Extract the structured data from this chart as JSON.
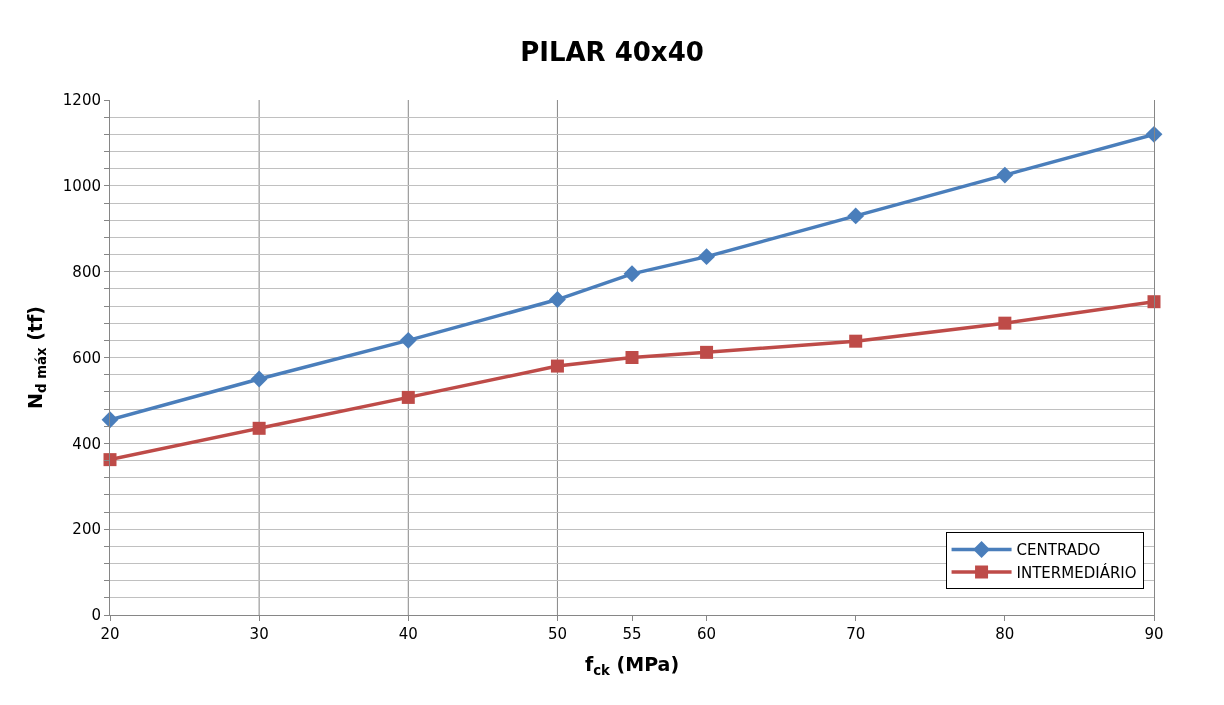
{
  "chart_data": {
    "type": "line",
    "title": "PILAR 40x40",
    "xlabel": "f$_{ck}$ (MPa)",
    "ylabel": "N$_{d máx}$ (tf)",
    "x": [
      20,
      30,
      40,
      50,
      55,
      60,
      70,
      80,
      90
    ],
    "series": [
      {
        "name": "CENTRADO",
        "color": "#4a7ebb",
        "marker": "diamond",
        "values": [
          455,
          550,
          640,
          735,
          795,
          835,
          930,
          1025,
          1120
        ]
      },
      {
        "name": "INTERMEDIÁRIO",
        "color": "#be4b48",
        "marker": "square",
        "values": [
          362,
          435,
          507,
          580,
          600,
          612,
          638,
          680,
          730
        ]
      }
    ],
    "xlim": [
      20,
      90
    ],
    "xticks": [
      20,
      30,
      40,
      50,
      55,
      60,
      70,
      80,
      90
    ],
    "ylim": [
      0,
      1200
    ],
    "yticks": [
      0,
      {
        "value": 40,
        "label": null
      },
      {
        "value": 80,
        "label": null
      },
      {
        "value": 120,
        "label": null
      },
      {
        "value": 160,
        "label": null
      },
      200,
      {
        "value": 240,
        "label": null
      },
      {
        "value": 280,
        "label": null
      },
      {
        "value": 320,
        "label": null
      },
      {
        "value": 360,
        "label": null
      },
      400,
      {
        "value": 440,
        "label": null
      },
      {
        "value": 480,
        "label": null
      },
      {
        "value": 520,
        "label": null
      },
      {
        "value": 560,
        "label": null
      },
      600,
      {
        "value": 640,
        "label": null
      },
      {
        "value": 680,
        "label": null
      },
      {
        "value": 720,
        "label": null
      },
      {
        "value": 760,
        "label": null
      },
      800,
      {
        "value": 840,
        "label": null
      },
      {
        "value": 880,
        "label": null
      },
      {
        "value": 920,
        "label": null
      },
      {
        "value": 960,
        "label": null
      },
      1000,
      {
        "value": 1040,
        "label": null
      },
      {
        "value": 1080,
        "label": null
      },
      {
        "value": 1120,
        "label": null
      },
      {
        "value": 1160,
        "label": null
      },
      1200
    ],
    "ref_lines": [
      {
        "axis": "x",
        "value": 30,
        "label": null,
        "color": "#868686"
      },
      {
        "axis": "x",
        "value": 40,
        "label": null,
        "color": "#868686"
      },
      {
        "axis": "x",
        "value": 50,
        "label": null,
        "color": "#868686"
      }
    ],
    "grid": "y",
    "legend": "bottom right",
    "line_style": "solid"
  }
}
